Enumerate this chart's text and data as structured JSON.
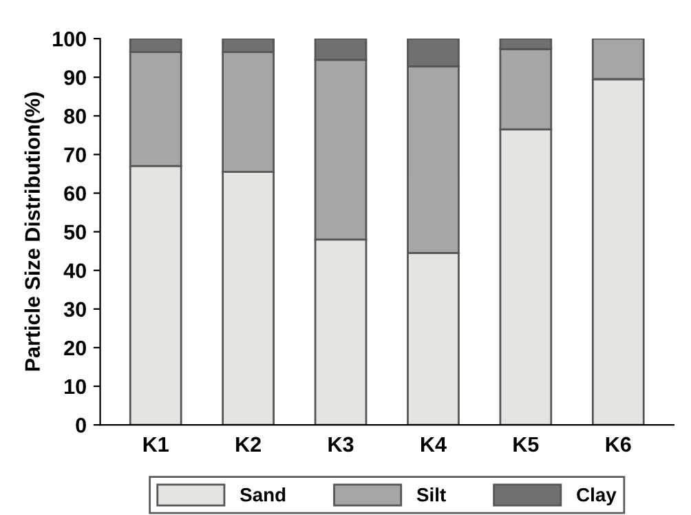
{
  "chart_data": {
    "type": "bar",
    "stacked": true,
    "ylabel": "Particle Size Distribution(%)",
    "categories": [
      "K1",
      "K2",
      "K3",
      "K4",
      "K5",
      "K6"
    ],
    "series": [
      {
        "name": "Sand",
        "color": "#e4e4e0",
        "values": [
          67,
          65.5,
          48,
          44.5,
          76.5,
          89.5
        ]
      },
      {
        "name": "Silt",
        "color": "#a6a6a6",
        "values": [
          29.5,
          31,
          46.5,
          48.3,
          20.8,
          10.5
        ]
      },
      {
        "name": "Clay",
        "color": "#707070",
        "values": [
          3.5,
          3.5,
          5.5,
          7.2,
          2.7,
          null
        ]
      }
    ],
    "ylim": [
      0,
      100
    ],
    "yticks": [
      0,
      10,
      20,
      30,
      40,
      50,
      60,
      70,
      80,
      90,
      100
    ],
    "grid": false,
    "legend": "bottom"
  }
}
